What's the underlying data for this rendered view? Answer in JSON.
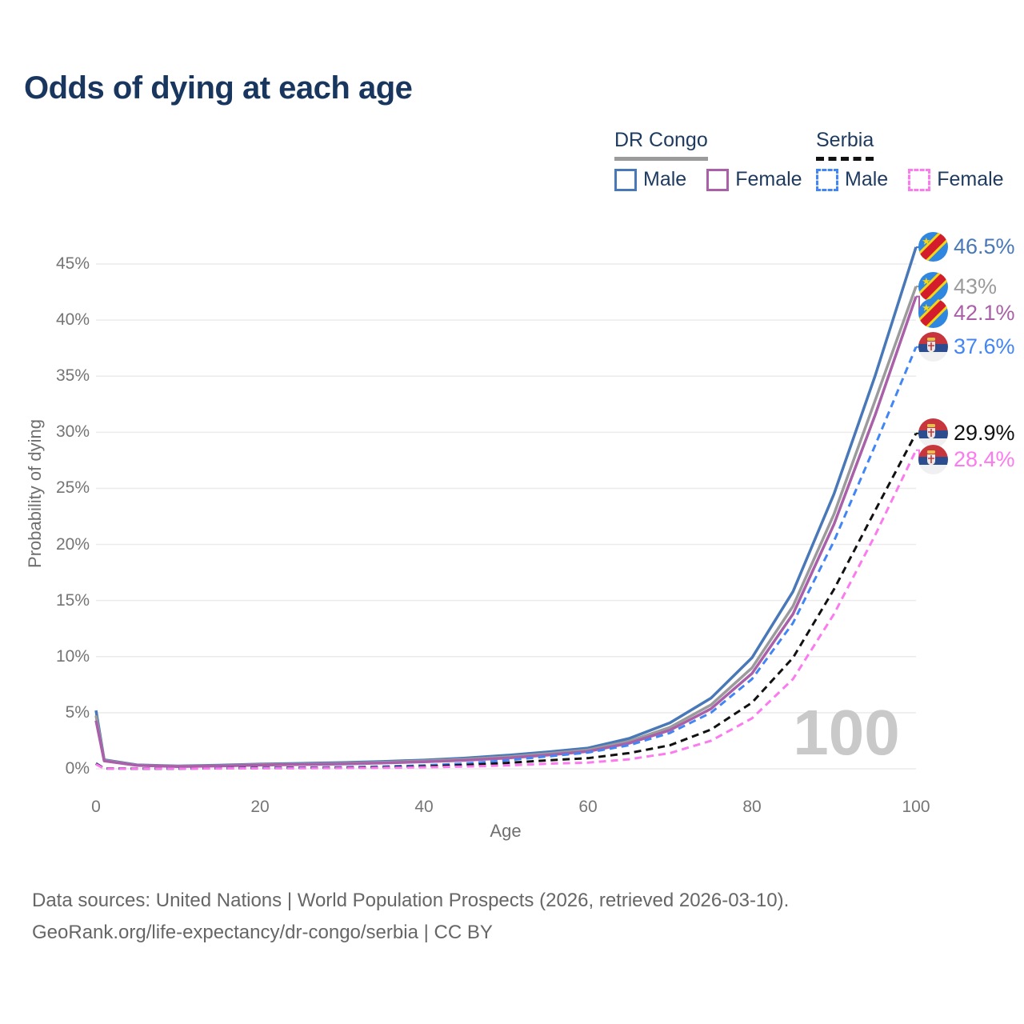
{
  "title": "Odds of dying at each age",
  "legend": {
    "groups": [
      {
        "country": "DR Congo",
        "line_style": "solid",
        "underline_color": "#9b9b9b",
        "items": [
          {
            "label": "Male",
            "color": "#4878b8",
            "dashed": false
          },
          {
            "label": "Female",
            "color": "#aa5fa9",
            "dashed": false
          }
        ]
      },
      {
        "country": "Serbia",
        "line_style": "dashed",
        "underline_color": "#111111",
        "items": [
          {
            "label": "Male",
            "color": "#4285f4",
            "dashed": true
          },
          {
            "label": "Female",
            "color": "#fb7bef",
            "dashed": true
          }
        ]
      }
    ]
  },
  "watermark": "100",
  "footer": {
    "line1": "Data sources: United Nations | World Population Prospects (2026, retrieved 2026-03-10).",
    "line2": "GeoRank.org/life-expectancy/dr-congo/serbia | CC BY"
  },
  "colors": {
    "title": "#18365e",
    "tick_text": "#757575",
    "gridline": "#ebebeb",
    "watermark": "#c9c9c9",
    "footer_text": "#666666"
  },
  "chart_data": {
    "type": "line",
    "title": "Odds of dying at each age",
    "xlabel": "Age",
    "ylabel": "Probability of dying",
    "xlim": [
      0,
      100
    ],
    "ylim": [
      0,
      45
    ],
    "grid": "horizontal",
    "legend_position": "top-right",
    "xticks": [
      0,
      20,
      40,
      60,
      80,
      100
    ],
    "xtick_labels": [
      "0",
      "20",
      "40",
      "60",
      "80",
      "100"
    ],
    "yticks": [
      0,
      5,
      10,
      15,
      20,
      25,
      30,
      35,
      40,
      45
    ],
    "ytick_labels": [
      "0%",
      "5%",
      "10%",
      "15%",
      "20%",
      "25%",
      "30%",
      "35%",
      "40%",
      "45%"
    ],
    "x": [
      0,
      1,
      5,
      10,
      15,
      20,
      25,
      30,
      35,
      40,
      45,
      50,
      55,
      60,
      65,
      70,
      75,
      80,
      85,
      90,
      95,
      100
    ],
    "series": [
      {
        "name": "DR Congo Male",
        "country": "DR Congo",
        "sex": "Male",
        "color": "#4878b8",
        "dashed": false,
        "flag_icon": "drc-flag-icon",
        "end_label": "46.5%",
        "end_value": 46.5,
        "values": [
          5.2,
          0.8,
          0.35,
          0.25,
          0.32,
          0.42,
          0.48,
          0.55,
          0.65,
          0.78,
          0.95,
          1.2,
          1.5,
          1.85,
          2.7,
          4.1,
          6.3,
          9.9,
          15.8,
          24.5,
          35.0,
          46.5
        ]
      },
      {
        "name": "DR Congo",
        "country": "DR Congo",
        "sex": "Both",
        "color": "#9b9b9b",
        "dashed": false,
        "flag_icon": "drc-flag-icon",
        "end_label": "43%",
        "end_value": 43.0,
        "values": [
          4.75,
          0.75,
          0.32,
          0.22,
          0.28,
          0.37,
          0.42,
          0.48,
          0.58,
          0.7,
          0.85,
          1.05,
          1.35,
          1.68,
          2.45,
          3.7,
          5.7,
          9.0,
          14.5,
          22.7,
          32.8,
          43.0
        ]
      },
      {
        "name": "DR Congo Female",
        "country": "DR Congo",
        "sex": "Female",
        "color": "#aa5fa9",
        "dashed": false,
        "flag_icon": "drc-flag-icon",
        "end_label": "42.1%",
        "end_value": 42.1,
        "values": [
          4.3,
          0.7,
          0.3,
          0.2,
          0.25,
          0.33,
          0.38,
          0.43,
          0.52,
          0.62,
          0.76,
          0.95,
          1.22,
          1.55,
          2.28,
          3.45,
          5.35,
          8.5,
          13.8,
          21.8,
          31.5,
          42.1
        ]
      },
      {
        "name": "Serbia Male",
        "country": "Serbia",
        "sex": "Male",
        "color": "#4285f4",
        "dashed": true,
        "flag_icon": "serbia-flag-icon",
        "end_label": "37.6%",
        "end_value": 37.6,
        "values": [
          0.5,
          0.03,
          0.02,
          0.02,
          0.05,
          0.09,
          0.11,
          0.14,
          0.2,
          0.3,
          0.47,
          0.75,
          1.1,
          1.45,
          2.1,
          3.2,
          5.0,
          8.0,
          13.0,
          20.3,
          28.8,
          37.6
        ]
      },
      {
        "name": "Serbia",
        "country": "Serbia",
        "sex": "Both",
        "color": "#111111",
        "dashed": true,
        "flag_icon": "serbia-flag-icon",
        "end_label": "29.9%",
        "end_value": 29.9,
        "values": [
          0.45,
          0.03,
          0.02,
          0.02,
          0.04,
          0.07,
          0.08,
          0.1,
          0.14,
          0.21,
          0.33,
          0.52,
          0.75,
          0.95,
          1.4,
          2.1,
          3.5,
          5.9,
          9.9,
          16.0,
          23.0,
          29.9
        ]
      },
      {
        "name": "Serbia Female",
        "country": "Serbia",
        "sex": "Female",
        "color": "#fb7bef",
        "dashed": true,
        "flag_icon": "serbia-flag-icon",
        "end_label": "28.4%",
        "end_value": 28.4,
        "values": [
          0.4,
          0.02,
          0.015,
          0.015,
          0.03,
          0.04,
          0.05,
          0.07,
          0.09,
          0.13,
          0.2,
          0.3,
          0.45,
          0.55,
          0.85,
          1.4,
          2.5,
          4.5,
          8.0,
          13.8,
          20.8,
          28.4
        ]
      }
    ]
  }
}
